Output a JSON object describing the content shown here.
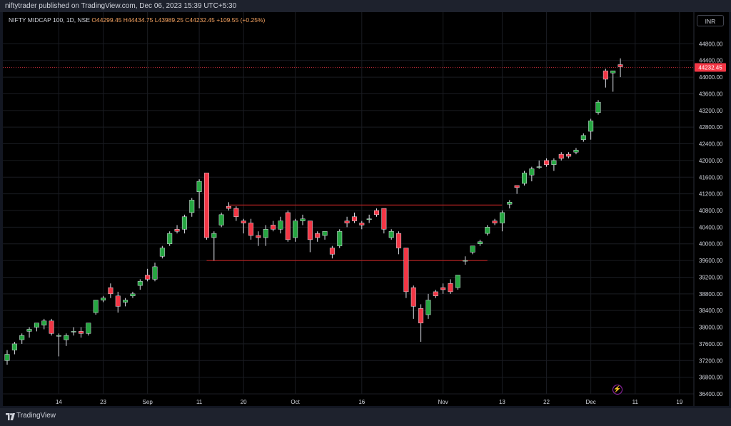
{
  "publish_text": "niftytrader published on TradingView.com, Dec 06, 2023 15:39 UTC+5:30",
  "symbol": {
    "name": "NIFTY MIDCAP 100, 1D, NSE",
    "ohlc": "O44299.45 H44434.75 L43989.25 C44232.45",
    "change": "+109.55 (+0.25%)"
  },
  "currency": "INR",
  "footer_brand": "TradingView",
  "colors": {
    "up": "#26a641",
    "down": "#f23645",
    "background": "#000000",
    "grid": "#1a1c22",
    "level_line": "#b22222",
    "last_price_tag": "#f23645"
  },
  "icons": [
    "tradingview-logo-icon",
    "lightning-icon"
  ],
  "chart_data": {
    "type": "candlestick",
    "title": "",
    "xlabel": "",
    "ylabel": "",
    "ylim": [
      36400,
      45200
    ],
    "y_ticks": [
      36400,
      36800,
      37200,
      37600,
      38000,
      38400,
      38800,
      39200,
      39600,
      40000,
      40400,
      40800,
      41200,
      41600,
      42000,
      42400,
      42800,
      43200,
      43600,
      44000,
      44400,
      44800
    ],
    "x_ticks": [
      {
        "label": "14",
        "index": 7
      },
      {
        "label": "23",
        "index": 13
      },
      {
        "label": "Sep",
        "index": 19
      },
      {
        "label": "11",
        "index": 26
      },
      {
        "label": "20",
        "index": 32
      },
      {
        "label": "Oct",
        "index": 39
      },
      {
        "label": "16",
        "index": 48
      },
      {
        "label": "Nov",
        "index": 59
      },
      {
        "label": "13",
        "index": 67
      },
      {
        "label": "22",
        "index": 73
      },
      {
        "label": "Dec",
        "index": 79
      },
      {
        "label": "11",
        "index": 85
      },
      {
        "label": "19",
        "index": 91
      }
    ],
    "last_price": 44232.45,
    "last_price_label": "44232.45",
    "grid": true,
    "levels": [
      {
        "price": 40930,
        "from_index": 30,
        "to_index": 67
      },
      {
        "price": 39600,
        "from_index": 27,
        "to_index": 65
      }
    ],
    "candles": [
      {
        "o": 37200,
        "h": 37450,
        "l": 37100,
        "c": 37350
      },
      {
        "o": 37450,
        "h": 37650,
        "l": 37350,
        "c": 37600
      },
      {
        "o": 37700,
        "h": 37850,
        "l": 37600,
        "c": 37800
      },
      {
        "o": 37900,
        "h": 38000,
        "l": 37750,
        "c": 37950
      },
      {
        "o": 38000,
        "h": 38050,
        "l": 37900,
        "c": 38100
      },
      {
        "o": 38050,
        "h": 38200,
        "l": 37950,
        "c": 38150
      },
      {
        "o": 38150,
        "h": 38200,
        "l": 37800,
        "c": 37850
      },
      {
        "o": 37800,
        "h": 37850,
        "l": 37300,
        "c": 37800
      },
      {
        "o": 37700,
        "h": 37850,
        "l": 37550,
        "c": 37800
      },
      {
        "o": 37900,
        "h": 38000,
        "l": 37800,
        "c": 37900
      },
      {
        "o": 37900,
        "h": 38000,
        "l": 37750,
        "c": 37850
      },
      {
        "o": 37850,
        "h": 38100,
        "l": 37800,
        "c": 38100
      },
      {
        "o": 38350,
        "h": 38650,
        "l": 38300,
        "c": 38650
      },
      {
        "o": 38650,
        "h": 38750,
        "l": 38600,
        "c": 38700
      },
      {
        "o": 38950,
        "h": 39050,
        "l": 38700,
        "c": 38800
      },
      {
        "o": 38750,
        "h": 38850,
        "l": 38350,
        "c": 38500
      },
      {
        "o": 38600,
        "h": 38700,
        "l": 38500,
        "c": 38650
      },
      {
        "o": 38750,
        "h": 38850,
        "l": 38700,
        "c": 38800
      },
      {
        "o": 39000,
        "h": 39150,
        "l": 38900,
        "c": 39100
      },
      {
        "o": 39250,
        "h": 39400,
        "l": 39100,
        "c": 39150
      },
      {
        "o": 39150,
        "h": 39550,
        "l": 39100,
        "c": 39450
      },
      {
        "o": 39700,
        "h": 39950,
        "l": 39650,
        "c": 39900
      },
      {
        "o": 40000,
        "h": 40300,
        "l": 39950,
        "c": 40250
      },
      {
        "o": 40350,
        "h": 40450,
        "l": 40250,
        "c": 40300
      },
      {
        "o": 40350,
        "h": 40700,
        "l": 40250,
        "c": 40650
      },
      {
        "o": 40750,
        "h": 41100,
        "l": 40650,
        "c": 41050
      },
      {
        "o": 41250,
        "h": 41550,
        "l": 40850,
        "c": 41500
      },
      {
        "o": 41700,
        "h": 41700,
        "l": 40100,
        "c": 40150
      },
      {
        "o": 40150,
        "h": 40300,
        "l": 39600,
        "c": 40250
      },
      {
        "o": 40450,
        "h": 40750,
        "l": 40400,
        "c": 40700
      },
      {
        "o": 40900,
        "h": 41000,
        "l": 40800,
        "c": 40850
      },
      {
        "o": 40850,
        "h": 40900,
        "l": 40550,
        "c": 40650
      },
      {
        "o": 40550,
        "h": 40600,
        "l": 40250,
        "c": 40500
      },
      {
        "o": 40500,
        "h": 40600,
        "l": 40100,
        "c": 40200
      },
      {
        "o": 40200,
        "h": 40300,
        "l": 39950,
        "c": 40150
      },
      {
        "o": 40150,
        "h": 40450,
        "l": 39950,
        "c": 40350
      },
      {
        "o": 40450,
        "h": 40550,
        "l": 40300,
        "c": 40350
      },
      {
        "o": 40350,
        "h": 40650,
        "l": 40250,
        "c": 40550
      },
      {
        "o": 40750,
        "h": 40800,
        "l": 40050,
        "c": 40100
      },
      {
        "o": 40150,
        "h": 40600,
        "l": 40050,
        "c": 40550
      },
      {
        "o": 40550,
        "h": 40700,
        "l": 40450,
        "c": 40600
      },
      {
        "o": 40550,
        "h": 40550,
        "l": 39800,
        "c": 40100
      },
      {
        "o": 40250,
        "h": 40300,
        "l": 40050,
        "c": 40150
      },
      {
        "o": 40200,
        "h": 40300,
        "l": 40100,
        "c": 40300
      },
      {
        "o": 39900,
        "h": 39950,
        "l": 39650,
        "c": 39750
      },
      {
        "o": 39950,
        "h": 40350,
        "l": 39900,
        "c": 40300
      },
      {
        "o": 40550,
        "h": 40650,
        "l": 40400,
        "c": 40500
      },
      {
        "o": 40650,
        "h": 40750,
        "l": 40500,
        "c": 40550
      },
      {
        "o": 40500,
        "h": 40550,
        "l": 40350,
        "c": 40450
      },
      {
        "o": 40600,
        "h": 40700,
        "l": 40500,
        "c": 40600
      },
      {
        "o": 40800,
        "h": 40850,
        "l": 40650,
        "c": 40700
      },
      {
        "o": 40850,
        "h": 40850,
        "l": 40250,
        "c": 40350
      },
      {
        "o": 40150,
        "h": 40350,
        "l": 40100,
        "c": 40300
      },
      {
        "o": 40250,
        "h": 40300,
        "l": 39750,
        "c": 39900
      },
      {
        "o": 39900,
        "h": 39900,
        "l": 38700,
        "c": 38850
      },
      {
        "o": 38950,
        "h": 39000,
        "l": 38200,
        "c": 38500
      },
      {
        "o": 38450,
        "h": 38550,
        "l": 37650,
        "c": 38100
      },
      {
        "o": 38300,
        "h": 38800,
        "l": 38200,
        "c": 38650
      },
      {
        "o": 38850,
        "h": 38900,
        "l": 38700,
        "c": 38750
      },
      {
        "o": 38950,
        "h": 39050,
        "l": 38800,
        "c": 38900
      },
      {
        "o": 39050,
        "h": 39150,
        "l": 38800,
        "c": 38850
      },
      {
        "o": 38950,
        "h": 39250,
        "l": 38900,
        "c": 39250
      },
      {
        "o": 39600,
        "h": 39700,
        "l": 39500,
        "c": 39600
      },
      {
        "o": 39800,
        "h": 39950,
        "l": 39750,
        "c": 39950
      },
      {
        "o": 40000,
        "h": 40100,
        "l": 39950,
        "c": 40050
      },
      {
        "o": 40250,
        "h": 40450,
        "l": 40200,
        "c": 40400
      },
      {
        "o": 40550,
        "h": 40600,
        "l": 40450,
        "c": 40500
      },
      {
        "o": 40500,
        "h": 40800,
        "l": 40300,
        "c": 40750
      },
      {
        "o": 40950,
        "h": 41050,
        "l": 40850,
        "c": 41000
      },
      {
        "o": 41400,
        "h": 41400,
        "l": 41200,
        "c": 41350
      },
      {
        "o": 41450,
        "h": 41750,
        "l": 41400,
        "c": 41700
      },
      {
        "o": 41650,
        "h": 41850,
        "l": 41500,
        "c": 41800
      },
      {
        "o": 41850,
        "h": 42000,
        "l": 41800,
        "c": 41850
      },
      {
        "o": 42000,
        "h": 42050,
        "l": 41850,
        "c": 41900
      },
      {
        "o": 41900,
        "h": 42050,
        "l": 41750,
        "c": 42000
      },
      {
        "o": 42150,
        "h": 42200,
        "l": 42000,
        "c": 42050
      },
      {
        "o": 42150,
        "h": 42200,
        "l": 42050,
        "c": 42100
      },
      {
        "o": 42200,
        "h": 42300,
        "l": 42150,
        "c": 42250
      },
      {
        "o": 42500,
        "h": 42650,
        "l": 42450,
        "c": 42600
      },
      {
        "o": 42700,
        "h": 43000,
        "l": 42500,
        "c": 42950
      },
      {
        "o": 43150,
        "h": 43450,
        "l": 43100,
        "c": 43400
      },
      {
        "o": 44150,
        "h": 44200,
        "l": 43750,
        "c": 43950
      },
      {
        "o": 44100,
        "h": 44150,
        "l": 43650,
        "c": 44150
      },
      {
        "o": 44300,
        "h": 44450,
        "l": 44000,
        "c": 44250
      }
    ]
  }
}
